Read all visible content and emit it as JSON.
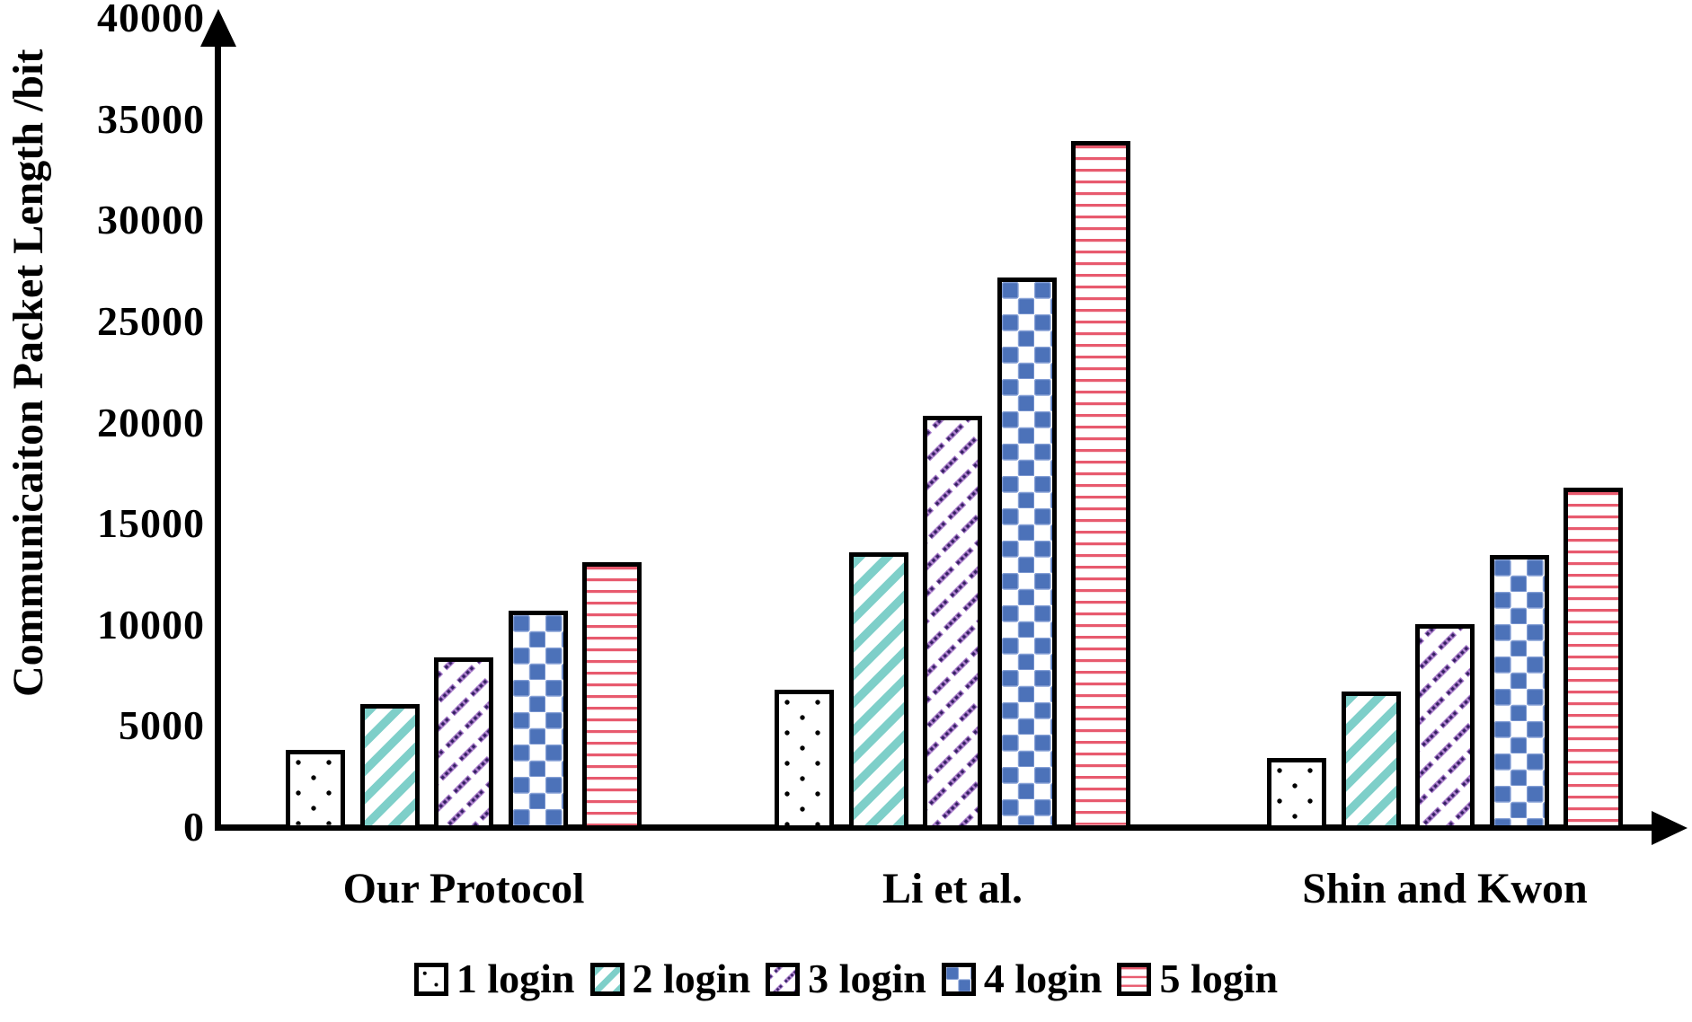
{
  "chart_data": {
    "type": "bar",
    "title": "",
    "ylabel": "Communicaiton Packet Length /bit",
    "xlabel": "",
    "categories": [
      "Our Protocol",
      "Li et al.",
      "Shin and Kwon"
    ],
    "series": [
      {
        "name": "1 login",
        "pattern": "black-dots",
        "color": "#000000",
        "values": [
          3800,
          6800,
          3400
        ]
      },
      {
        "name": "2 login",
        "pattern": "teal-diagonal-stripes",
        "color": "#7ECFC9",
        "values": [
          6100,
          13600,
          6700
        ]
      },
      {
        "name": "3 login",
        "pattern": "purple-dashed-diagonal-dots",
        "color": "#32205F",
        "color2": "#9D6CC3",
        "values": [
          8400,
          20350,
          10050
        ]
      },
      {
        "name": "4 login",
        "pattern": "blue-checkerboard",
        "color": "#4C72B9",
        "values": [
          10700,
          27150,
          13450
        ]
      },
      {
        "name": "5 login",
        "pattern": "red-horizontal-lines",
        "color": "#E85A6E",
        "values": [
          13100,
          33900,
          16800
        ]
      }
    ],
    "ylim": [
      0,
      40000
    ],
    "yticks": [
      0,
      5000,
      10000,
      15000,
      20000,
      25000,
      30000,
      35000,
      40000
    ],
    "legend_position": "bottom",
    "grid": false,
    "axis_color": "#000000",
    "background": "#ffffff"
  }
}
